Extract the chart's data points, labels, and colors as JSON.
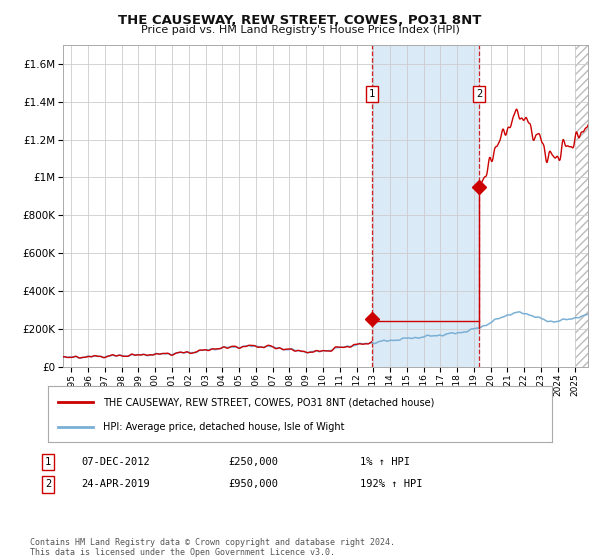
{
  "title": "THE CAUSEWAY, REW STREET, COWES, PO31 8NT",
  "subtitle": "Price paid vs. HM Land Registry's House Price Index (HPI)",
  "footer": "Contains HM Land Registry data © Crown copyright and database right 2024.\nThis data is licensed under the Open Government Licence v3.0.",
  "legend_line1": "THE CAUSEWAY, REW STREET, COWES, PO31 8NT (detached house)",
  "legend_line2": "HPI: Average price, detached house, Isle of Wight",
  "transaction1": {
    "label": "1",
    "date": "07-DEC-2012",
    "price": "£250,000",
    "hpi_pct": "1%",
    "direction": "↑"
  },
  "transaction2": {
    "label": "2",
    "date": "24-APR-2019",
    "price": "£950,000",
    "hpi_pct": "192%",
    "direction": "↑"
  },
  "hpi_color": "#7bafd4",
  "price_color": "#cc0000",
  "marker_color": "#cc0000",
  "shade_color": "#daeaf7",
  "vline_color": "#cc0000",
  "background_color": "#ffffff",
  "grid_color": "#cccccc",
  "ylim": [
    0,
    1700000
  ],
  "yticks": [
    0,
    200000,
    400000,
    600000,
    800000,
    1000000,
    1200000,
    1400000,
    1600000
  ],
  "xlim_start": 1994.5,
  "xlim_end": 2025.8,
  "transaction1_x": 2012.92,
  "transaction2_x": 2019.31
}
